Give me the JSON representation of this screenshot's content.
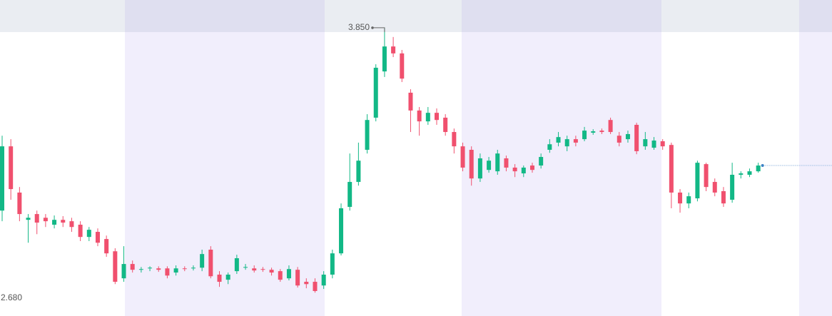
{
  "chart_data": {
    "type": "candlestick",
    "open": [
      3.059,
      3.337,
      3.137,
      3.019,
      3.044,
      3.028,
      2.998,
      3.019,
      3.013,
      2.998,
      2.945,
      2.967,
      2.936,
      2.883,
      2.766,
      2.828,
      2.803,
      2.809,
      2.809,
      2.809,
      2.791,
      2.809,
      2.809,
      2.812,
      2.89,
      2.782,
      2.76,
      2.797,
      2.812,
      2.809,
      2.806,
      2.803,
      2.797,
      2.766,
      2.803,
      2.751,
      2.751,
      2.735,
      2.782,
      2.874,
      3.075,
      3.183,
      3.322,
      3.461,
      3.661,
      3.769,
      3.739,
      3.569,
      3.492,
      3.445,
      3.482,
      3.461,
      3.399,
      3.337,
      3.322,
      3.198,
      3.235,
      3.229,
      3.285,
      3.245,
      3.22,
      3.254,
      3.254,
      3.322,
      3.353,
      3.337,
      3.368,
      3.368,
      3.396,
      3.405,
      3.451,
      3.383,
      3.368,
      3.43,
      3.337,
      3.331,
      3.359,
      3.343,
      3.137,
      3.09,
      3.112,
      3.26,
      3.183,
      3.143,
      3.106,
      3.214,
      3.214,
      3.229
    ],
    "high": [
      3.383,
      3.368,
      3.161,
      3.044,
      3.059,
      3.044,
      3.038,
      3.035,
      3.028,
      3.013,
      2.988,
      2.982,
      2.951,
      2.896,
      2.905,
      2.843,
      2.815,
      2.818,
      2.818,
      2.818,
      2.822,
      2.818,
      2.822,
      2.89,
      2.905,
      2.797,
      2.791,
      2.868,
      2.828,
      2.822,
      2.815,
      2.812,
      2.806,
      2.822,
      2.815,
      2.766,
      2.766,
      2.797,
      2.89,
      3.09,
      3.306,
      3.353,
      3.476,
      3.692,
      3.85,
      3.81,
      3.754,
      3.584,
      3.507,
      3.507,
      3.501,
      3.476,
      3.414,
      3.353,
      3.337,
      3.306,
      3.291,
      3.322,
      3.297,
      3.26,
      3.254,
      3.266,
      3.306,
      3.368,
      3.399,
      3.383,
      3.383,
      3.421,
      3.411,
      3.414,
      3.461,
      3.399,
      3.405,
      3.439,
      3.399,
      3.377,
      3.368,
      3.353,
      3.152,
      3.137,
      3.275,
      3.266,
      3.198,
      3.161,
      3.266,
      3.229,
      3.241,
      3.266
    ],
    "low": [
      3.013,
      3.106,
      3.013,
      2.92,
      2.957,
      2.988,
      2.982,
      2.988,
      2.967,
      2.927,
      2.927,
      2.905,
      2.859,
      2.741,
      2.751,
      2.791,
      2.791,
      2.797,
      2.794,
      2.766,
      2.778,
      2.797,
      2.8,
      2.797,
      2.766,
      2.729,
      2.741,
      2.785,
      2.803,
      2.791,
      2.794,
      2.778,
      2.751,
      2.757,
      2.726,
      2.723,
      2.704,
      2.72,
      2.766,
      2.865,
      3.059,
      3.167,
      3.306,
      3.445,
      3.637,
      3.723,
      3.615,
      3.399,
      3.383,
      3.43,
      3.43,
      3.383,
      3.306,
      3.229,
      3.167,
      3.183,
      3.223,
      3.214,
      3.229,
      3.204,
      3.204,
      3.223,
      3.241,
      3.309,
      3.337,
      3.316,
      3.337,
      3.359,
      3.387,
      3.39,
      3.39,
      3.337,
      3.353,
      3.303,
      3.322,
      3.322,
      3.322,
      3.069,
      3.05,
      3.069,
      3.099,
      3.143,
      3.121,
      3.075,
      3.093,
      3.198,
      3.204,
      3.223
    ],
    "close": [
      3.337,
      3.152,
      3.044,
      3.028,
      3.007,
      3.013,
      3.019,
      3.007,
      2.988,
      2.945,
      2.976,
      2.92,
      2.874,
      2.751,
      2.828,
      2.803,
      2.806,
      2.812,
      2.803,
      2.778,
      2.809,
      2.806,
      2.812,
      2.871,
      2.775,
      2.751,
      2.782,
      2.853,
      2.815,
      2.8,
      2.803,
      2.791,
      2.76,
      2.806,
      2.735,
      2.741,
      2.711,
      2.782,
      2.874,
      3.069,
      3.183,
      3.275,
      3.451,
      3.677,
      3.769,
      3.739,
      3.63,
      3.492,
      3.445,
      3.482,
      3.451,
      3.399,
      3.337,
      3.245,
      3.198,
      3.285,
      3.275,
      3.306,
      3.245,
      3.229,
      3.245,
      3.235,
      3.291,
      3.346,
      3.377,
      3.368,
      3.353,
      3.405,
      3.402,
      3.399,
      3.399,
      3.353,
      3.39,
      3.316,
      3.368,
      3.362,
      3.337,
      3.137,
      3.09,
      3.121,
      3.266,
      3.161,
      3.137,
      3.09,
      3.214,
      3.22,
      3.229,
      3.254
    ],
    "up_color": "#12b886",
    "down_color": "#f0506e",
    "ylim": [
      2.603,
      3.97
    ],
    "annotations": [
      {
        "value": 3.85,
        "label": "3.850"
      },
      {
        "value": 2.68,
        "label": "2.680"
      }
    ]
  }
}
